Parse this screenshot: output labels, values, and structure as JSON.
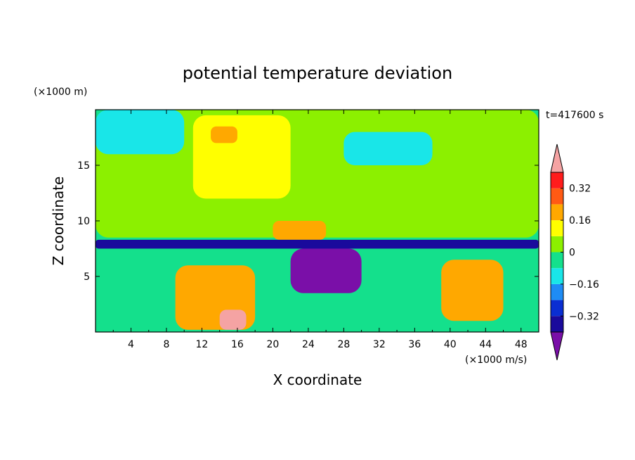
{
  "chart_data": {
    "type": "heatmap",
    "title": "potential temperature deviation",
    "xlabel": "X coordinate",
    "ylabel": "Z coordinate",
    "x_unit": "(×1000 m/s)",
    "y_unit": "(×1000 m)",
    "time_label": "t=417600 s",
    "xlim": [
      0,
      50
    ],
    "ylim": [
      0,
      20
    ],
    "x_ticks": [
      4,
      8,
      12,
      16,
      20,
      24,
      28,
      32,
      36,
      40,
      44,
      48
    ],
    "y_ticks": [
      5,
      10,
      15
    ],
    "colorbar": {
      "levels": [
        -0.4,
        -0.32,
        -0.24,
        -0.16,
        -0.08,
        0,
        0.08,
        0.16,
        0.24,
        0.32,
        0.4
      ],
      "tick_labels": [
        "0.32",
        "0.16",
        "0",
        "−0.16",
        "−0.32"
      ],
      "tick_values": [
        0.32,
        0.16,
        0,
        -0.16,
        -0.32
      ],
      "colors": [
        "#7a0fa8",
        "#1a0a9c",
        "#0a2ed2",
        "#1e8cf5",
        "#19e6e8",
        "#14e08c",
        "#8cf000",
        "#ffff00",
        "#ffa800",
        "#ff5a14",
        "#ff1c1c",
        "#f5a3a3"
      ]
    },
    "regions": [
      {
        "x": [
          0,
          50
        ],
        "z": [
          8.5,
          20
        ],
        "level": 6,
        "note": "upper layer mostly green"
      },
      {
        "x": [
          0,
          10
        ],
        "z": [
          16,
          20
        ],
        "level": 4
      },
      {
        "x": [
          11,
          22
        ],
        "z": [
          12,
          19.5
        ],
        "level": 7
      },
      {
        "x": [
          13,
          16
        ],
        "z": [
          17,
          18.5
        ],
        "level": 8
      },
      {
        "x": [
          28,
          38
        ],
        "z": [
          15,
          18
        ],
        "level": 4
      },
      {
        "x": [
          20,
          26
        ],
        "z": [
          8.3,
          10
        ],
        "level": 8
      },
      {
        "x": [
          0,
          50
        ],
        "z": [
          7.5,
          8.3
        ],
        "level": 1
      },
      {
        "x": [
          22,
          30
        ],
        "z": [
          3.5,
          7.5
        ],
        "level": 0
      },
      {
        "x": [
          9,
          18
        ],
        "z": [
          0.2,
          6
        ],
        "level": 8
      },
      {
        "x": [
          14,
          17
        ],
        "z": [
          0.2,
          2
        ],
        "level": 11
      },
      {
        "x": [
          39,
          46
        ],
        "z": [
          1,
          6.5
        ],
        "level": 8
      }
    ]
  }
}
